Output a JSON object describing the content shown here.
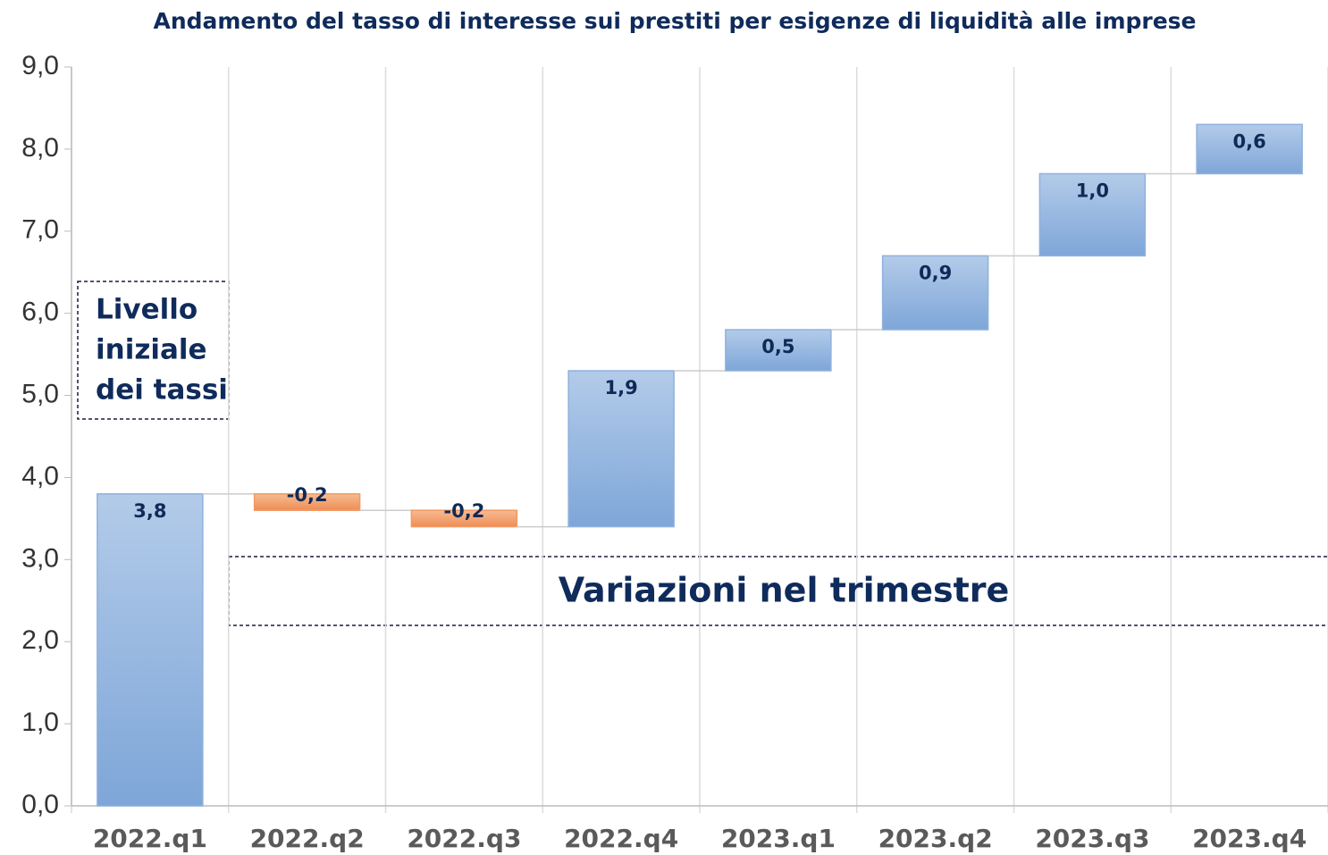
{
  "chart_data": {
    "type": "waterfall",
    "title": "Andamento del tasso di interesse sui prestiti per esigenze di liquidità alle imprese",
    "categories": [
      "2022.q1",
      "2022.q2",
      "2022.q3",
      "2022.q4",
      "2023.q1",
      "2023.q2",
      "2023.q3",
      "2023.q4"
    ],
    "values": [
      3.8,
      -0.2,
      -0.2,
      1.9,
      0.5,
      0.9,
      1.0,
      0.6
    ],
    "value_labels": [
      "3,8",
      "-0,2",
      "-0,2",
      "1,9",
      "0,5",
      "0,9",
      "1,0",
      "0,6"
    ],
    "color_increase": "#8fb1dd",
    "color_decrease": "#f19a62",
    "ylim": [
      0,
      9
    ],
    "yticks": [
      {
        "value": 0,
        "label": "0,0"
      },
      {
        "value": 1,
        "label": "1,0"
      },
      {
        "value": 2,
        "label": "2,0"
      },
      {
        "value": 3,
        "label": "3,0"
      },
      {
        "value": 4,
        "label": "4,0"
      },
      {
        "value": 5,
        "label": "5,0"
      },
      {
        "value": 6,
        "label": "6,0"
      },
      {
        "value": 7,
        "label": "7,0"
      },
      {
        "value": 8,
        "label": "8,0"
      },
      {
        "value": 9,
        "label": "9,0"
      }
    ],
    "grid": false,
    "annotations": [
      {
        "lines": [
          "Livello",
          "iniziale",
          "dei tassi"
        ]
      },
      {
        "lines": [
          "Variazioni nel trimestre"
        ]
      }
    ]
  }
}
